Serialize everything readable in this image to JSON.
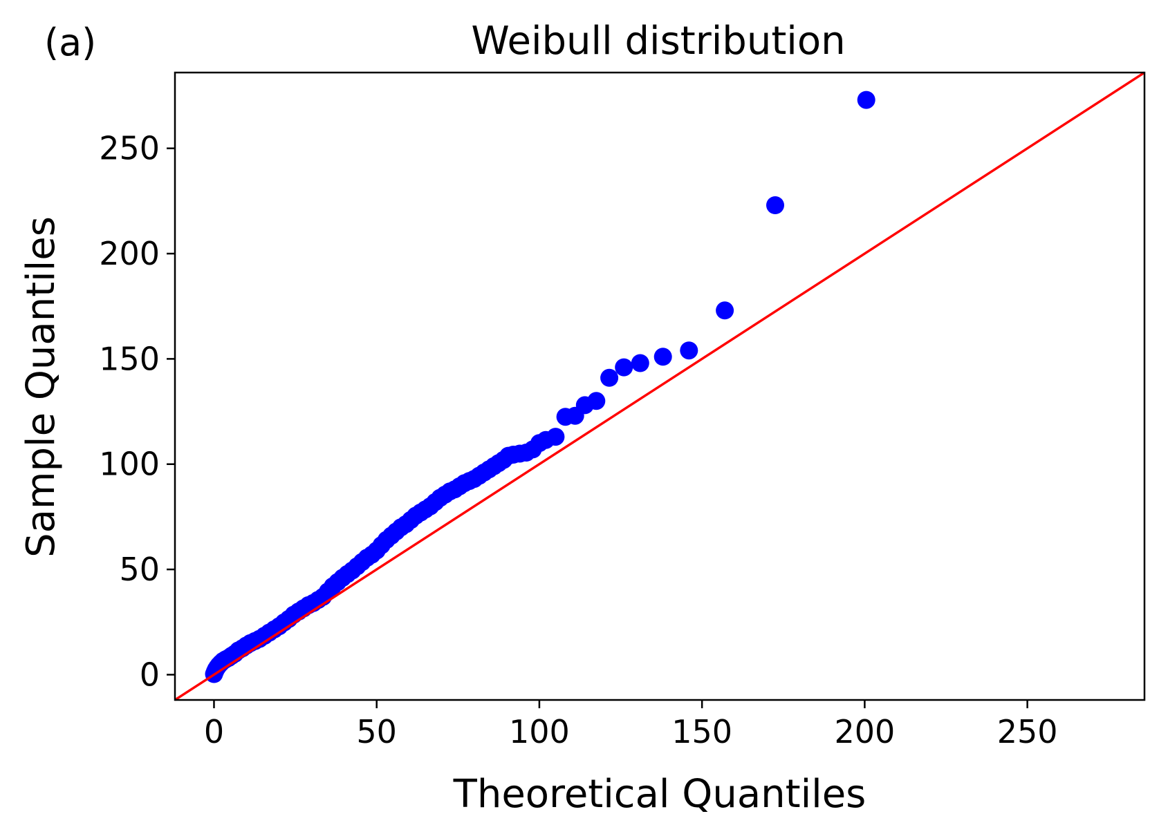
{
  "panel_label": "(a)",
  "chart_data": {
    "type": "scatter",
    "title": "Weibull distribution",
    "xlabel": "Theoretical Quantiles",
    "ylabel": "Sample Quantiles",
    "xlim": [
      -12,
      286
    ],
    "ylim": [
      -12,
      286
    ],
    "xticks": [
      0,
      50,
      100,
      150,
      200,
      250
    ],
    "yticks": [
      0,
      50,
      100,
      150,
      200,
      250
    ],
    "grid": false,
    "legend": "none",
    "colors": {
      "points": "#0000ff",
      "reference_line": "#ff0000"
    },
    "reference_line": {
      "slope": 1,
      "intercept": 0
    },
    "points": [
      [
        0.0,
        0.3
      ],
      [
        0.3,
        1.5
      ],
      [
        0.6,
        2.5
      ],
      [
        1.0,
        3.5
      ],
      [
        1.5,
        4.5
      ],
      [
        2.1,
        5.5
      ],
      [
        2.8,
        6.5
      ],
      [
        3.6,
        7.3
      ],
      [
        4.5,
        8.0
      ],
      [
        5.4,
        9.0
      ],
      [
        6.4,
        10.0
      ],
      [
        7.5,
        11.5
      ],
      [
        8.7,
        12.5
      ],
      [
        9.9,
        13.8
      ],
      [
        11.2,
        15.0
      ],
      [
        12.6,
        16.0
      ],
      [
        14.0,
        17.0
      ],
      [
        15.5,
        18.5
      ],
      [
        17.0,
        20.0
      ],
      [
        18.5,
        21.5
      ],
      [
        20.0,
        23.0
      ],
      [
        21.5,
        24.8
      ],
      [
        23.0,
        26.5
      ],
      [
        24.5,
        28.5
      ],
      [
        26.0,
        30.0
      ],
      [
        27.5,
        31.5
      ],
      [
        29.0,
        33.0
      ],
      [
        30.5,
        34.0
      ],
      [
        32.0,
        35.5
      ],
      [
        33.5,
        37.0
      ],
      [
        35.0,
        39.5
      ],
      [
        36.5,
        42.0
      ],
      [
        38.0,
        44.0
      ],
      [
        39.5,
        46.0
      ],
      [
        41.0,
        47.8
      ],
      [
        42.5,
        49.5
      ],
      [
        44.0,
        51.5
      ],
      [
        45.5,
        53.5
      ],
      [
        47.0,
        55.5
      ],
      [
        48.5,
        57.0
      ],
      [
        50.0,
        59.0
      ],
      [
        51.5,
        61.5
      ],
      [
        53.0,
        64.0
      ],
      [
        54.5,
        66.0
      ],
      [
        56.0,
        68.0
      ],
      [
        57.5,
        70.0
      ],
      [
        59.0,
        71.5
      ],
      [
        60.5,
        73.5
      ],
      [
        62.0,
        75.5
      ],
      [
        63.5,
        77.0
      ],
      [
        65.0,
        78.5
      ],
      [
        66.5,
        80.0
      ],
      [
        68.0,
        82.0
      ],
      [
        69.5,
        84.0
      ],
      [
        71.0,
        85.5
      ],
      [
        72.5,
        87.0
      ],
      [
        74.0,
        88.0
      ],
      [
        75.5,
        89.5
      ],
      [
        77.0,
        91.0
      ],
      [
        78.5,
        92.0
      ],
      [
        80.0,
        93.0
      ],
      [
        81.5,
        94.5
      ],
      [
        83.0,
        96.0
      ],
      [
        84.5,
        97.5
      ],
      [
        86.0,
        99.0
      ],
      [
        87.5,
        100.5
      ],
      [
        89.0,
        102.0
      ],
      [
        90.5,
        104.0
      ],
      [
        92.0,
        104.5
      ],
      [
        94.0,
        105.0
      ],
      [
        96.0,
        105.5
      ],
      [
        98.0,
        107.0
      ],
      [
        100.0,
        110.0
      ],
      [
        102.0,
        111.5
      ],
      [
        105.0,
        113.0
      ],
      [
        108.0,
        122.5
      ],
      [
        111.0,
        123.0
      ],
      [
        114.0,
        128.0
      ],
      [
        117.5,
        130.0
      ],
      [
        121.5,
        141.0
      ],
      [
        126.0,
        146.0
      ],
      [
        131.0,
        148.0
      ],
      [
        138.0,
        151.0
      ],
      [
        146.0,
        154.0
      ],
      [
        157.0,
        173.0
      ],
      [
        172.5,
        223.0
      ],
      [
        200.5,
        273.0
      ]
    ]
  }
}
